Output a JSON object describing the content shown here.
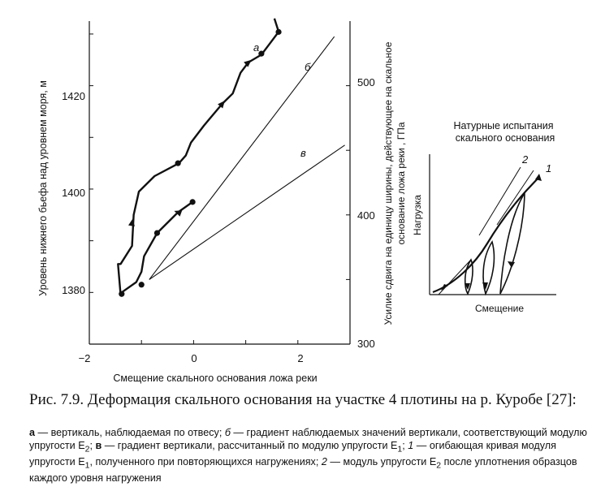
{
  "main_chart": {
    "axes": {
      "xlabel": "Смещение скального основания  ложа реки",
      "ylabel_left": "Уровень нижнего  бьефа  над уровнем моря, м",
      "ylabel_right_line1": "Усилие сдвига на единицу ширины, действующее на скальное",
      "ylabel_right_line2": "основание  ложа реки , ГПа",
      "x_ticks": [
        "−2",
        "0",
        "2"
      ],
      "y_left_ticks": [
        "1380",
        "1400",
        "1420"
      ],
      "y_right_ticks": [
        "300",
        "400",
        "500"
      ],
      "xlim": [
        -2,
        3
      ],
      "ylim_left": [
        1370,
        1432.5
      ],
      "ylim_right": [
        300,
        550
      ]
    },
    "curve_labels": {
      "a": "а",
      "b": "б",
      "v": "в"
    }
  },
  "inset": {
    "title_line1": "Натурные испытания",
    "title_line2": "скального  основания",
    "xlabel": "Смещение",
    "ylabel": "Нагрузка",
    "label_1": "1",
    "label_2": "2"
  },
  "caption": {
    "title": "Рис. 7.9. Деформация скального основания на участке 4 плотины на р. Куробе [27]:",
    "a_key": "а",
    "a_text": " — вертикаль, наблюдаемая по отвесу; ",
    "b_key": "б",
    "b_text": " — градиент наблюдаемых значений вертикали, соответствующий модулю упругости E",
    "b_sub": "2",
    "v_sep": "; ",
    "v_key": "в",
    "v_text": " — градиент вертикали, рассчитанный по модулю упругости E",
    "v_sub": "1",
    "k1_sep": "; ",
    "k1_key": "1",
    "k1_text": " — огибающая кривая модуля упругости E",
    "k1_sub": "1",
    "k1_rest": ", полученного при повторяющихся нагружениях; ",
    "k2_key": "2",
    "k2_text": " — модуль упругости E",
    "k2_sub": "2",
    "k2_rest": " после уплотнения образцов каждого уровня нагружения"
  },
  "chart_data": [
    {
      "type": "line",
      "title": "",
      "xlabel": "Смещение скального основания  ложа реки",
      "ylabel": "Уровень нижнего  бьефа  над уровнем моря, м",
      "xlim": [
        -2,
        3
      ],
      "ylim": [
        1370,
        1432.5
      ],
      "secondary_ylabel": "Усилие сдвига на единицу ширины, действующее на скальное основание  ложа реки , ГПа",
      "secondary_ylim": [
        300,
        550
      ],
      "series": [
        {
          "name": "а",
          "x": [
            -0.02,
            -0.3,
            -0.7,
            -0.95,
            -1.0,
            -1.1,
            -1.38,
            -1.4,
            -1.45,
            -1.4,
            -1.18,
            -1.15,
            -1.05,
            -0.75,
            -0.28,
            -0.15,
            -0.05,
            0.2,
            0.55,
            0.75,
            0.9,
            1.05,
            1.3,
            1.45,
            1.6,
            1.63,
            1.55
          ],
          "y": [
            1397.5,
            1395.5,
            1391.5,
            1387,
            1384,
            1382,
            1380,
            1379.6,
            1385.5,
            1385.5,
            1389,
            1395,
            1399.5,
            1402.5,
            1405,
            1406.5,
            1409,
            1412.3,
            1416.5,
            1418.5,
            1422.5,
            1424.5,
            1426,
            1428,
            1430,
            1430.5,
            1433
          ]
        },
        {
          "name": "б",
          "x": [
            -0.85,
            2.7
          ],
          "y": [
            1382.5,
            1429.5
          ]
        },
        {
          "name": "в",
          "x": [
            -0.85,
            2.9
          ],
          "y": [
            1382.5,
            1408.5
          ]
        }
      ],
      "markers": [
        {
          "x": -0.02,
          "y": 1397.5
        },
        {
          "x": -0.7,
          "y": 1391.5
        },
        {
          "x": -1.0,
          "y": 1381.5
        },
        {
          "x": -1.38,
          "y": 1379.7
        },
        {
          "x": -0.3,
          "y": 1405
        },
        {
          "x": 1.3,
          "y": 1426.2
        },
        {
          "x": 1.63,
          "y": 1430.4
        }
      ],
      "grid": false,
      "legend": "none"
    }
  ]
}
